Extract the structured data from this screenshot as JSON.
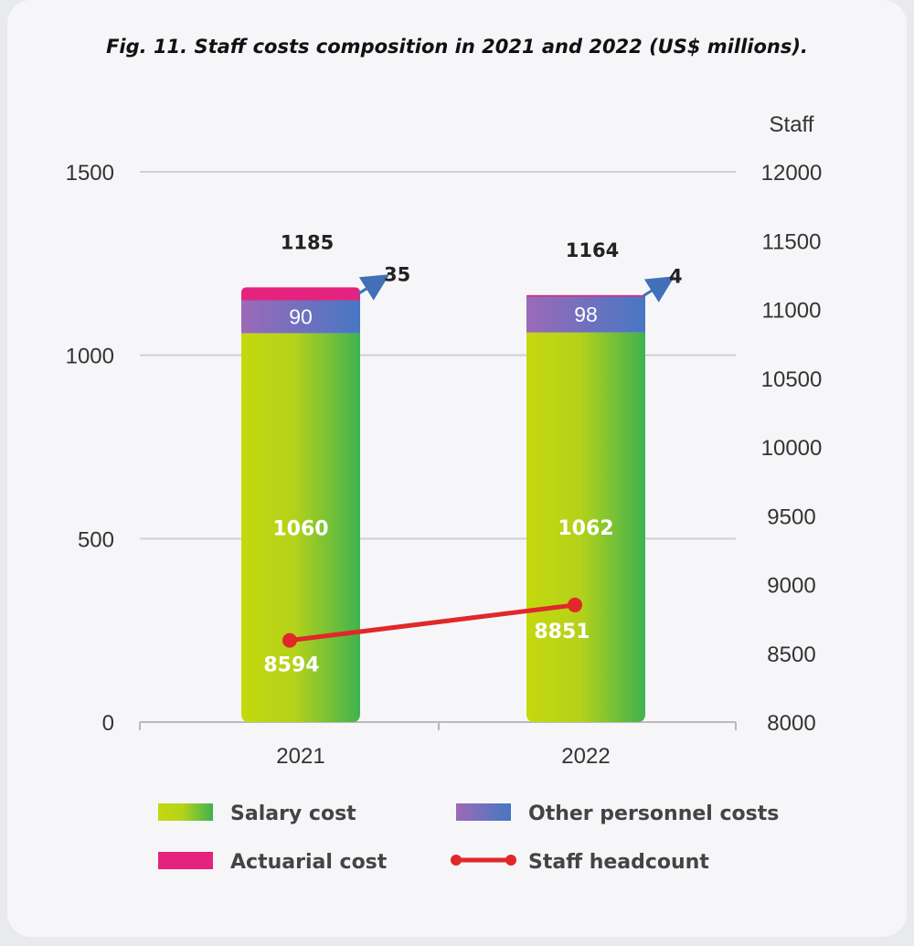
{
  "chart_data": {
    "type": "bar",
    "stacked": true,
    "title": "Fig. 11. Staff costs composition in 2021 and 2022 (US$ millions).",
    "categories": [
      "2021",
      "2022"
    ],
    "series": [
      {
        "name": "Salary cost",
        "values": [
          1060,
          1062
        ]
      },
      {
        "name": "Other personnel costs",
        "values": [
          90,
          98
        ]
      },
      {
        "name": "Actuarial cost",
        "values": [
          35,
          4
        ]
      }
    ],
    "totals": [
      1185,
      1164
    ],
    "line_series": {
      "name": "Staff headcount",
      "axis": "right",
      "values": [
        8594,
        8851
      ]
    },
    "y_left": {
      "min": 0,
      "max": 1500,
      "ticks": [
        0,
        500,
        1000,
        1500
      ]
    },
    "y_right": {
      "label": "Staff",
      "min": 8000,
      "max": 12000,
      "ticks": [
        8000,
        8500,
        9000,
        9500,
        10000,
        10500,
        11000,
        11500,
        12000
      ]
    },
    "legend_position": "bottom",
    "colors": {
      "salary_start": "#c5d80e",
      "salary_end": "#3fb24f",
      "other_start": "#9b6ab8",
      "other_end": "#4777c4",
      "actuarial": "#e5237f",
      "headcount": "#e0282a",
      "arrow": "#4270b8"
    }
  }
}
